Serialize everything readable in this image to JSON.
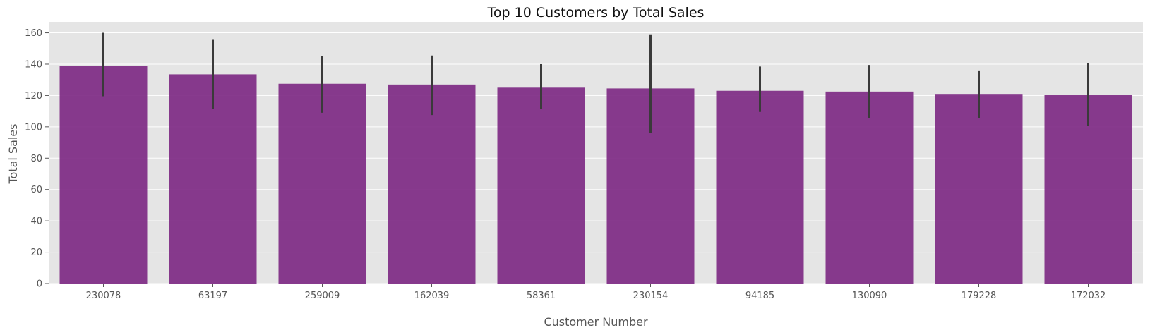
{
  "colors": {
    "plot_background": "#E5E5E5",
    "grid": "#FFFFFF",
    "bar": "#7E2A84",
    "error_bar": "#3A3A3A",
    "tick_text": "#555555",
    "title_text": "#111111"
  },
  "chart_data": {
    "type": "bar",
    "title": "Top 10 Customers by Total Sales",
    "xlabel": "Customer Number",
    "ylabel": "Total Sales",
    "ylim": [
      0,
      167
    ],
    "yticks": [
      0,
      20,
      40,
      60,
      80,
      100,
      120,
      140,
      160
    ],
    "grid": true,
    "categories": [
      "230078",
      "63197",
      "259009",
      "162039",
      "58361",
      "230154",
      "94185",
      "130090",
      "179228",
      "172032"
    ],
    "values": [
      139,
      133.5,
      127.5,
      127,
      125,
      124.5,
      123,
      122.5,
      121,
      120.5
    ],
    "error_low": [
      119.5,
      111.5,
      109,
      107.5,
      111.5,
      96,
      109.5,
      105.5,
      105.5,
      100.5
    ],
    "error_high": [
      160,
      155.5,
      145,
      145.5,
      140,
      159,
      138.5,
      139.5,
      136,
      140.5
    ]
  }
}
